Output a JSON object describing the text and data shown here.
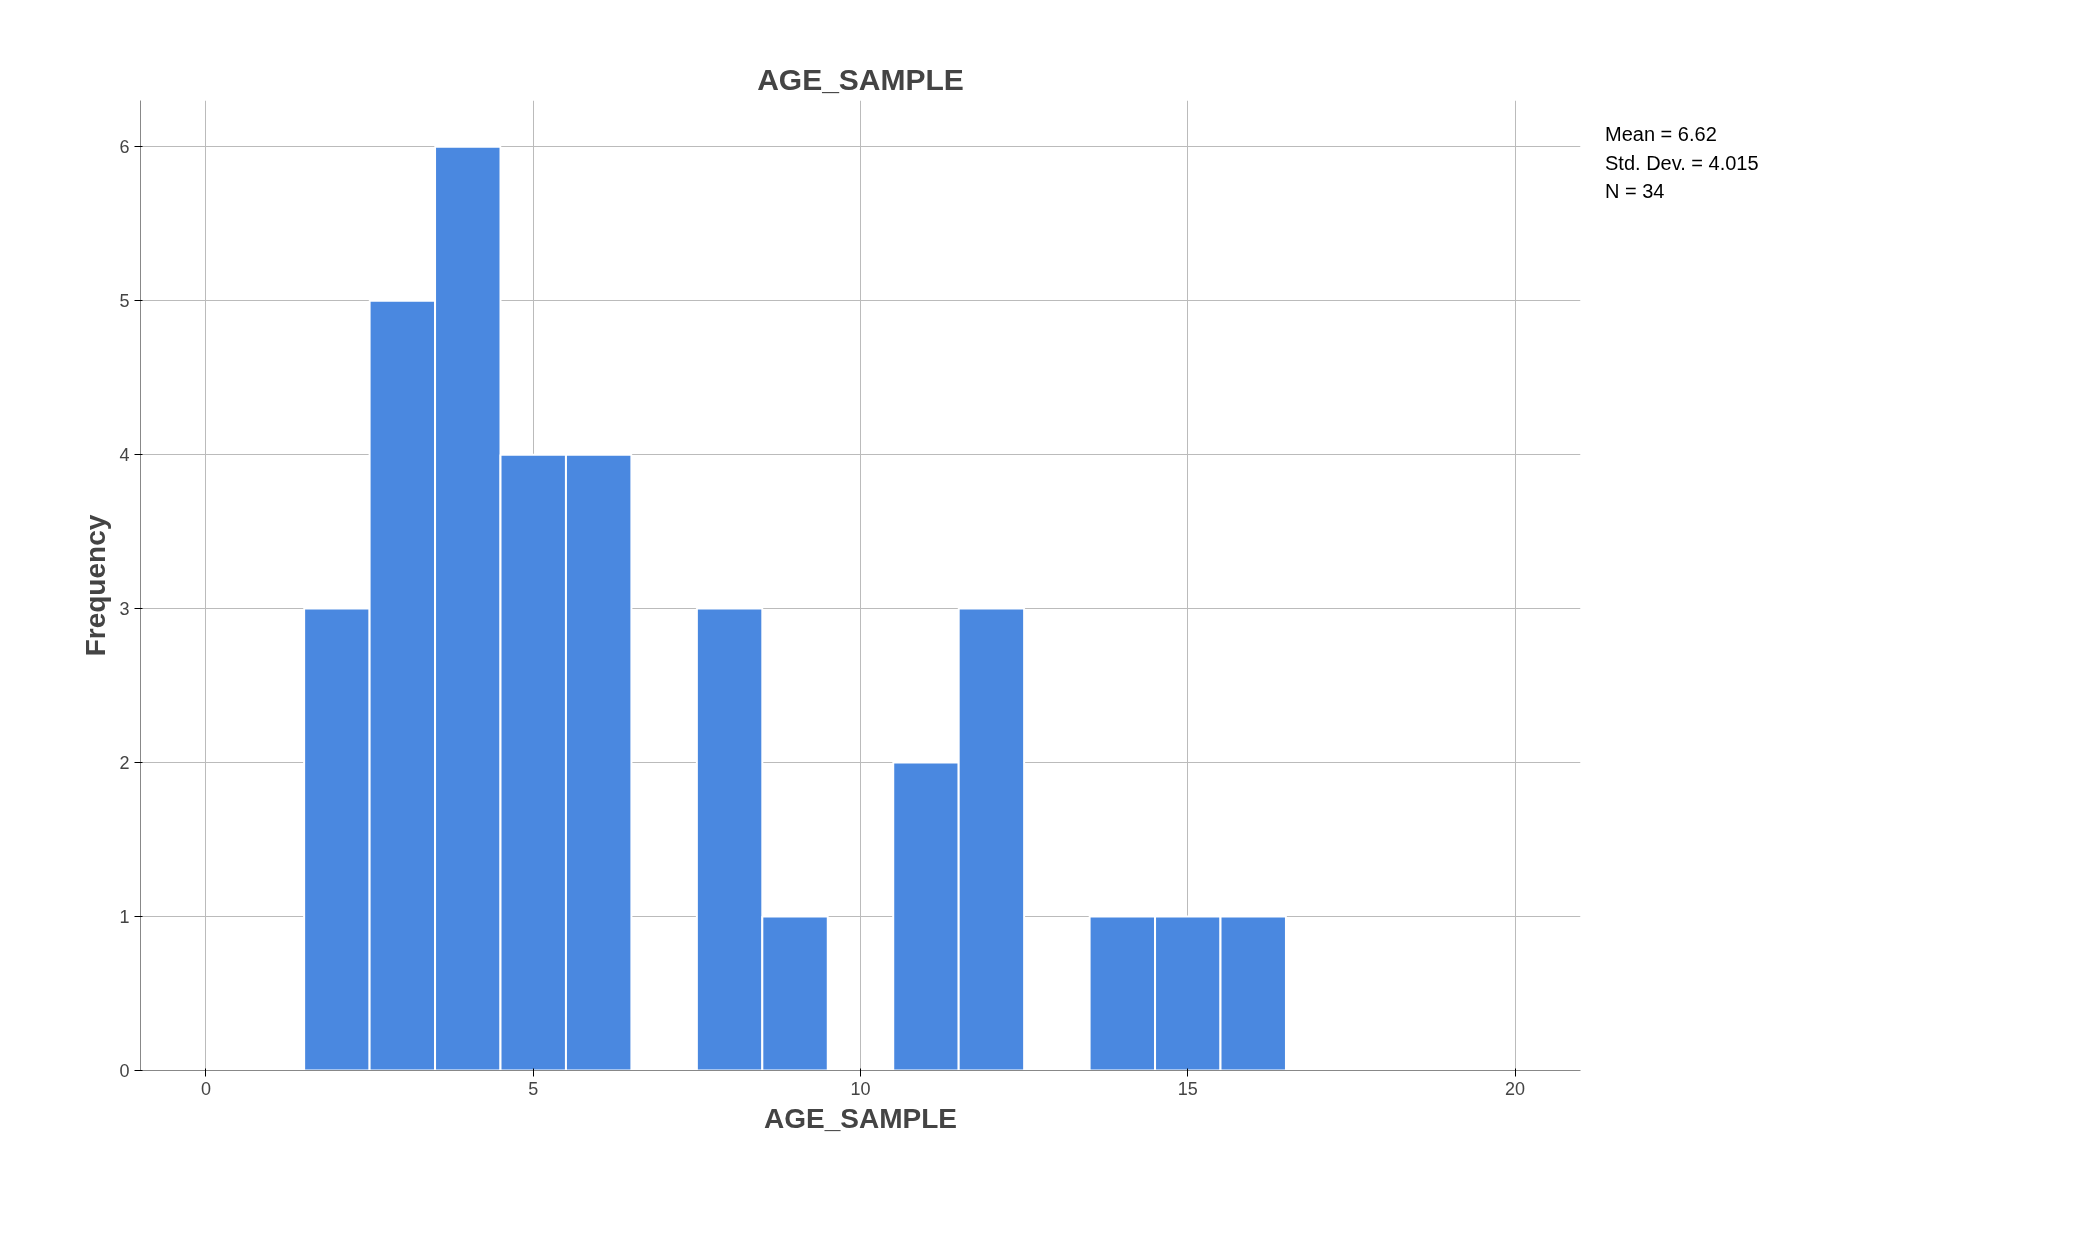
{
  "chart_data": {
    "type": "histogram",
    "title": "AGE_SAMPLE",
    "xlabel": "AGE_SAMPLE",
    "ylabel": "Frequency",
    "bins": [
      1.5,
      2.5,
      3.5,
      4.5,
      5.5,
      6.5,
      7.5,
      8.5,
      9.5,
      10.5,
      11.5,
      12.5,
      13.5,
      14.5,
      15.5,
      16.5
    ],
    "values": [
      3,
      5,
      6,
      4,
      4,
      0,
      3,
      1,
      0,
      2,
      3,
      0,
      1,
      1,
      1
    ],
    "color": "#4a88e0",
    "xlim": [
      -1,
      21
    ],
    "xticks": [
      0,
      5,
      10,
      15,
      20
    ],
    "ylim": [
      0,
      6.3
    ],
    "yticks": [
      0,
      1,
      2,
      3,
      4,
      5,
      6
    ],
    "grid": true,
    "annotations": [
      "Mean = 6.62",
      "Std. Dev. = 4.015",
      "N = 34"
    ]
  }
}
